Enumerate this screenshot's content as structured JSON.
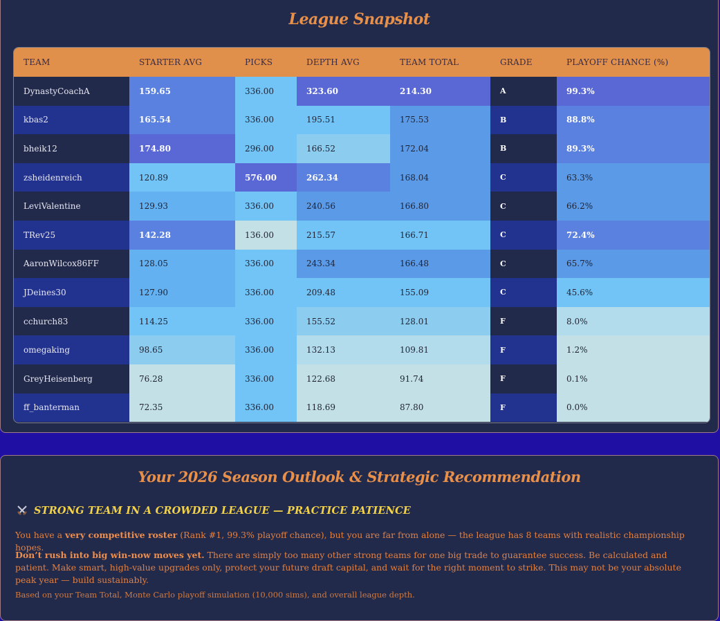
{
  "snapshot": {
    "title": "League Snapshot",
    "columns": [
      "TEAM",
      "STARTER AVG",
      "PICKS",
      "DEPTH AVG",
      "TEAM TOTAL",
      "GRADE",
      "PLAYOFF CHANCE (%)"
    ],
    "rows": [
      {
        "team": "DynastyCoachA",
        "starter": "159.65",
        "picks": "336.00",
        "depth": "323.60",
        "total": "214.30",
        "grade": "A",
        "playoff": "99.3%"
      },
      {
        "team": "kbas2",
        "starter": "165.54",
        "picks": "336.00",
        "depth": "195.51",
        "total": "175.53",
        "grade": "B",
        "playoff": "88.8%"
      },
      {
        "team": "bheik12",
        "starter": "174.80",
        "picks": "296.00",
        "depth": "166.52",
        "total": "172.04",
        "grade": "B",
        "playoff": "89.3%"
      },
      {
        "team": "zsheidenreich",
        "starter": "120.89",
        "picks": "576.00",
        "depth": "262.34",
        "total": "168.04",
        "grade": "C",
        "playoff": "63.3%"
      },
      {
        "team": "LeviValentine",
        "starter": "129.93",
        "picks": "336.00",
        "depth": "240.56",
        "total": "166.80",
        "grade": "C",
        "playoff": "66.2%"
      },
      {
        "team": "TRev25",
        "starter": "142.28",
        "picks": "136.00",
        "depth": "215.57",
        "total": "166.71",
        "grade": "C",
        "playoff": "72.4%"
      },
      {
        "team": "AaronWilcox86FF",
        "starter": "128.05",
        "picks": "336.00",
        "depth": "243.34",
        "total": "166.48",
        "grade": "C",
        "playoff": "65.7%"
      },
      {
        "team": "JDeines30",
        "starter": "127.90",
        "picks": "336.00",
        "depth": "209.48",
        "total": "155.09",
        "grade": "C",
        "playoff": "45.6%"
      },
      {
        "team": "cchurch83",
        "starter": "114.25",
        "picks": "336.00",
        "depth": "155.52",
        "total": "128.01",
        "grade": "F",
        "playoff": "8.0%"
      },
      {
        "team": "omegaking",
        "starter": "98.65",
        "picks": "336.00",
        "depth": "132.13",
        "total": "109.81",
        "grade": "F",
        "playoff": "1.2%"
      },
      {
        "team": "GreyHeisenberg",
        "starter": "76.28",
        "picks": "336.00",
        "depth": "122.68",
        "total": "91.74",
        "grade": "F",
        "playoff": "0.1%"
      },
      {
        "team": "ff_banterman",
        "starter": "72.35",
        "picks": "336.00",
        "depth": "118.69",
        "total": "87.80",
        "grade": "F",
        "playoff": "0.0%"
      }
    ]
  },
  "outlook": {
    "title": "Your 2026 Season Outlook & Strategic Recommendation",
    "headline_icon": "crossed-swords-icon",
    "headline": "STRONG TEAM IN A CROWDED LEAGUE — PRACTICE PATIENCE",
    "p1_pre": "You have a ",
    "p1_bold": "very competitive roster",
    "p1_post": " (Rank #1, 99.3% playoff chance), but you are far from alone — the league has 8 teams with realistic championship hopes.",
    "p2_bold": "Don’t rush into big win-now moves yet.",
    "p2_post": " There are simply too many other strong teams for one big trade to guarantee success. Be calculated and patient. Make smart, high-value upgrades only, protect your future draft capital, and wait for the right moment to strike. This may not be your absolute peak year — build sustainably.",
    "footnote": "Based on your Team Total, Monte Carlo playoff simulation (10,000 sims), and overall league depth."
  },
  "colors": {
    "title_orange": "#e8904a",
    "header_orange": "#e0904a",
    "panel_bg": "#222a4c",
    "page_bg": "#1f0fa3",
    "headline_yellow": "#f2d24a"
  }
}
